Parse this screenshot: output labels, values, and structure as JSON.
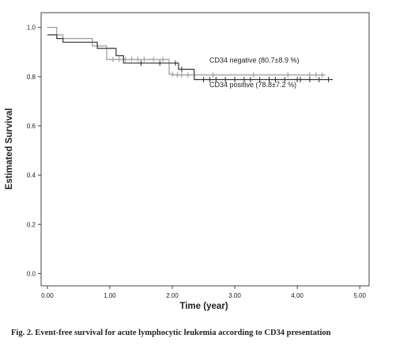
{
  "chart_data": {
    "type": "line",
    "title": "",
    "xlabel": "Time (year)",
    "ylabel": "Estimated Survival",
    "xlim": [
      -0.1,
      5.15
    ],
    "ylim": [
      -0.05,
      1.06
    ],
    "x_ticks": [
      "0.00",
      "1.00",
      "2.00",
      "3.00",
      "4.00",
      "5.00"
    ],
    "y_ticks": [
      "0.0",
      "0.2",
      "0.4",
      "0.6",
      "0.8",
      "1.0"
    ],
    "grid": false,
    "legend": "none",
    "series": [
      {
        "name": "CD34 negative (80.7±8.9 %)",
        "color": "#999999",
        "steps": [
          [
            0.0,
            1.0
          ],
          [
            0.15,
            1.0
          ],
          [
            0.15,
            0.97
          ],
          [
            0.25,
            0.97
          ],
          [
            0.25,
            0.955
          ],
          [
            0.72,
            0.955
          ],
          [
            0.72,
            0.925
          ],
          [
            0.95,
            0.925
          ],
          [
            0.95,
            0.87
          ],
          [
            1.95,
            0.87
          ],
          [
            1.95,
            0.81
          ],
          [
            2.02,
            0.81
          ],
          [
            2.02,
            0.807
          ],
          [
            4.45,
            0.807
          ]
        ],
        "censored": [
          1.05,
          1.15,
          1.25,
          1.35,
          1.45,
          1.55,
          1.7,
          1.85,
          2.0,
          2.08,
          2.15,
          2.25,
          2.65,
          3.3,
          3.85,
          4.2,
          4.3,
          4.4
        ]
      },
      {
        "name": "CD34 positive (78.8±7.2 %)",
        "color": "#333333",
        "steps": [
          [
            0.0,
            0.97
          ],
          [
            0.15,
            0.97
          ],
          [
            0.15,
            0.955
          ],
          [
            0.25,
            0.955
          ],
          [
            0.25,
            0.94
          ],
          [
            0.8,
            0.94
          ],
          [
            0.8,
            0.915
          ],
          [
            1.1,
            0.915
          ],
          [
            1.1,
            0.885
          ],
          [
            1.22,
            0.885
          ],
          [
            1.22,
            0.855
          ],
          [
            2.1,
            0.855
          ],
          [
            2.1,
            0.83
          ],
          [
            2.35,
            0.83
          ],
          [
            2.35,
            0.788
          ],
          [
            4.57,
            0.788
          ]
        ],
        "censored": [
          1.5,
          1.8,
          2.05,
          2.15,
          2.5,
          2.6,
          2.7,
          2.85,
          3.0,
          3.15,
          3.25,
          3.4,
          3.55,
          3.65,
          3.8,
          4.0,
          4.05,
          4.2,
          4.35,
          4.5
        ]
      }
    ]
  },
  "caption": "Fig. 2. Event-free survival for acute lymphocytic leukemia according to CD34 presentation"
}
